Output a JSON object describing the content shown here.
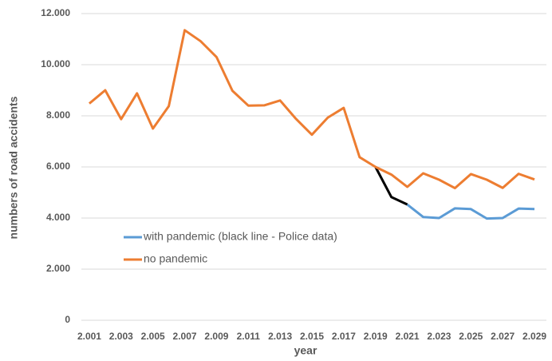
{
  "chart_data": {
    "type": "line",
    "x_label": "year",
    "y_label": "numbers of road accidents",
    "x": [
      2001,
      2002,
      2003,
      2004,
      2005,
      2006,
      2007,
      2008,
      2009,
      2010,
      2011,
      2012,
      2013,
      2014,
      2015,
      2016,
      2017,
      2018,
      2019,
      2020,
      2021,
      2022,
      2023,
      2024,
      2025,
      2026,
      2027,
      2028,
      2029
    ],
    "series": [
      {
        "name": "with pandemic (black line - Police data)",
        "color": "#5b9bd5",
        "police_color": "#000000",
        "police_until": 2021,
        "values": [
          null,
          null,
          null,
          null,
          null,
          null,
          null,
          null,
          null,
          null,
          null,
          null,
          null,
          null,
          null,
          null,
          null,
          null,
          6000,
          4820,
          4530,
          4040,
          4000,
          4380,
          4350,
          3980,
          4000,
          4370,
          4350
        ]
      },
      {
        "name": "no pandemic",
        "color": "#ed7d31",
        "values": [
          8480,
          9000,
          7870,
          8880,
          7500,
          8380,
          11350,
          10920,
          10300,
          8980,
          8400,
          8410,
          8600,
          7880,
          7260,
          7930,
          8310,
          6380,
          6000,
          5700,
          5220,
          5750,
          5500,
          5170,
          5720,
          5500,
          5180,
          5730,
          5510
        ]
      }
    ],
    "xlim": [
      2000.5,
      2029.5
    ],
    "xticks": [
      {
        "value": 2001,
        "label": "2.001"
      },
      {
        "value": 2003,
        "label": "2.003"
      },
      {
        "value": 2005,
        "label": "2.005"
      },
      {
        "value": 2007,
        "label": "2.007"
      },
      {
        "value": 2009,
        "label": "2.009"
      },
      {
        "value": 2011,
        "label": "2.011"
      },
      {
        "value": 2013,
        "label": "2.013"
      },
      {
        "value": 2015,
        "label": "2.015"
      },
      {
        "value": 2017,
        "label": "2.017"
      },
      {
        "value": 2019,
        "label": "2.019"
      },
      {
        "value": 2021,
        "label": "2.021"
      },
      {
        "value": 2023,
        "label": "2.023"
      },
      {
        "value": 2025,
        "label": "2.025"
      },
      {
        "value": 2027,
        "label": "2.027"
      },
      {
        "value": 2029,
        "label": "2.029"
      }
    ],
    "ylim": [
      0,
      12000
    ],
    "yticks": [
      0,
      {
        "value": 2000,
        "label": "2.000"
      },
      {
        "value": 4000,
        "label": "4.000"
      },
      {
        "value": 6000,
        "label": "6.000"
      },
      {
        "value": 8000,
        "label": "8.000"
      },
      {
        "value": 10000,
        "label": "10.000"
      },
      {
        "value": 12000,
        "label": "12.000"
      }
    ],
    "grid": true
  }
}
